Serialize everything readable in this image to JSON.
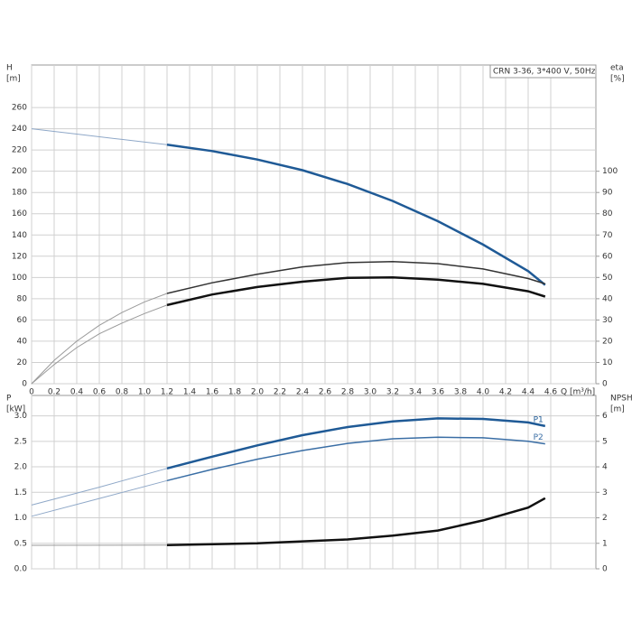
{
  "chart_data": [
    {
      "type": "line",
      "title": "CRN 3-36, 3*400 V, 50Hz",
      "ylabel": "H",
      "yunit": "[m]",
      "y2label": "eta",
      "y2unit": "[%]",
      "xlabel": "Q [m³/h]",
      "xlim": [
        0,
        5
      ],
      "ylim": [
        0,
        300
      ],
      "y2lim": [
        0,
        150
      ],
      "grid": true,
      "xticks": [
        0,
        0.2,
        0.4,
        0.6,
        0.8,
        {
          "value": 1,
          "label": "1.0"
        },
        1.2,
        1.4,
        1.6,
        1.8,
        {
          "value": 2,
          "label": "2.0"
        },
        2.2,
        2.4,
        2.6,
        2.8,
        {
          "value": 3,
          "label": "3.0"
        },
        3.2,
        3.4,
        3.6,
        3.8,
        {
          "value": 4,
          "label": "4.0"
        },
        4.2,
        4.4,
        4.6
      ],
      "yticks": [
        0,
        20,
        40,
        60,
        80,
        100,
        120,
        140,
        160,
        180,
        200,
        220,
        240,
        260
      ],
      "y2ticks": [
        0,
        10,
        20,
        30,
        40,
        50,
        60,
        70,
        80,
        90,
        100
      ],
      "series": [
        {
          "color": "#8fa8c8",
          "width": 1,
          "x": [
            0,
            0.4,
            0.8,
            1.2
          ],
          "values": [
            240,
            235,
            230,
            225
          ]
        },
        {
          "color": "#1f5a96",
          "width": 2.5,
          "x": [
            1.2,
            1.6,
            2.0,
            2.4,
            2.8,
            3.2,
            3.6,
            4.0,
            4.4,
            4.55
          ],
          "values": [
            225,
            219,
            211,
            201,
            188,
            172,
            153,
            131,
            106,
            93
          ]
        },
        {
          "color": "#9a9a9a",
          "width": 1,
          "axis": "y2",
          "x": [
            0,
            0.2,
            0.4,
            0.6,
            0.8,
            1.0,
            1.2
          ],
          "values": [
            0,
            11,
            20,
            27.5,
            33.5,
            38.5,
            42.5
          ]
        },
        {
          "color": "#333333",
          "width": 1.5,
          "axis": "y2",
          "x": [
            1.2,
            1.6,
            2.0,
            2.4,
            2.8,
            3.2,
            3.6,
            4.0,
            4.4,
            4.55
          ],
          "values": [
            42.5,
            47.5,
            51.5,
            55,
            57,
            57.5,
            56.5,
            54,
            49.5,
            47
          ]
        },
        {
          "color": "#9a9a9a",
          "width": 1,
          "axis": "y2",
          "x": [
            0,
            0.2,
            0.4,
            0.6,
            0.8,
            1.0,
            1.2
          ],
          "values": [
            0,
            9,
            17,
            23.5,
            28.5,
            33,
            37
          ]
        },
        {
          "color": "#111111",
          "width": 2.5,
          "axis": "y2",
          "x": [
            1.2,
            1.6,
            2.0,
            2.4,
            2.8,
            3.2,
            3.6,
            4.0,
            4.4,
            4.55
          ],
          "values": [
            37,
            42,
            45.5,
            48,
            49.8,
            50,
            49,
            47,
            43.5,
            41
          ]
        }
      ]
    },
    {
      "type": "line",
      "ylabel": "P",
      "yunit": "[kW]",
      "y2label": "NPSH",
      "y2unit": "[m]",
      "xlim": [
        0,
        5
      ],
      "ylim": [
        0,
        3.4
      ],
      "y2lim": [
        0,
        6.8
      ],
      "grid": true,
      "yticks": [
        {
          "value": 0,
          "label": "0.0"
        },
        0.5,
        {
          "value": 1,
          "label": "1.0"
        },
        1.5,
        {
          "value": 2,
          "label": "2.0"
        },
        2.5,
        {
          "value": 3,
          "label": "3.0"
        }
      ],
      "y2ticks": [
        0,
        1,
        2,
        3,
        4,
        5,
        6
      ],
      "series": [
        {
          "color": "#8fa8c8",
          "width": 1,
          "x": [
            0,
            0.6,
            1.2
          ],
          "values": [
            1.25,
            1.6,
            1.97
          ]
        },
        {
          "name": "P1",
          "color": "#1f5a96",
          "width": 2.5,
          "x": [
            1.2,
            1.6,
            2.0,
            2.4,
            2.8,
            3.2,
            3.6,
            4.0,
            4.4,
            4.55
          ],
          "values": [
            1.97,
            2.2,
            2.42,
            2.62,
            2.78,
            2.89,
            2.95,
            2.94,
            2.87,
            2.8
          ]
        },
        {
          "color": "#8fa8c8",
          "width": 1,
          "x": [
            0,
            0.6,
            1.2
          ],
          "values": [
            1.03,
            1.38,
            1.73
          ]
        },
        {
          "name": "P2",
          "color": "#3a6ea5",
          "width": 1.5,
          "x": [
            1.2,
            1.6,
            2.0,
            2.4,
            2.8,
            3.2,
            3.6,
            4.0,
            4.4,
            4.55
          ],
          "values": [
            1.73,
            1.95,
            2.15,
            2.32,
            2.46,
            2.55,
            2.58,
            2.57,
            2.5,
            2.45
          ]
        },
        {
          "color": "#9a9a9a",
          "width": 1,
          "axis": "y2",
          "x": [
            0,
            1.2
          ],
          "values": [
            0.92,
            0.93
          ]
        },
        {
          "color": "#111111",
          "width": 2.5,
          "axis": "y2",
          "x": [
            1.2,
            2.0,
            2.8,
            3.2,
            3.6,
            4.0,
            4.4,
            4.55
          ],
          "values": [
            0.93,
            1.0,
            1.15,
            1.3,
            1.5,
            1.9,
            2.4,
            2.77
          ]
        }
      ]
    }
  ]
}
